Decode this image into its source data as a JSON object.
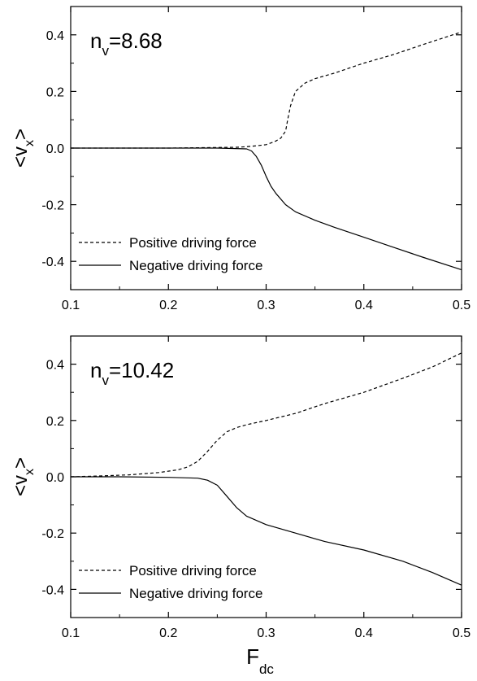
{
  "figure": {
    "x_axis_label_main": "F",
    "x_axis_label_sub": "dc"
  },
  "chart_data": [
    {
      "type": "line",
      "annotation": {
        "main": "n",
        "sub": "v",
        "value": "=8.68"
      },
      "ylabel": {
        "open": "<v",
        "sub": "x",
        "close": ">"
      },
      "xlim": [
        0.1,
        0.5
      ],
      "ylim": [
        -0.5,
        0.5
      ],
      "x_ticks": [
        "0.1",
        "0.2",
        "0.3",
        "0.4",
        "0.5"
      ],
      "y_ticks": [
        "0.4",
        "0.2",
        "0.0",
        "-0.2",
        "-0.4"
      ],
      "x_tick_values": [
        0.1,
        0.2,
        0.3,
        0.4,
        0.5
      ],
      "y_tick_values": [
        0.4,
        0.2,
        0.0,
        -0.2,
        -0.4
      ],
      "legend_position": "bottom-left",
      "series": [
        {
          "name": "Positive driving force",
          "style": "dashed",
          "x": [
            0.1,
            0.15,
            0.2,
            0.25,
            0.27,
            0.28,
            0.29,
            0.3,
            0.305,
            0.31,
            0.315,
            0.32,
            0.322,
            0.325,
            0.328,
            0.33,
            0.335,
            0.34,
            0.35,
            0.37,
            0.4,
            0.43,
            0.46,
            0.5
          ],
          "y": [
            0.0,
            0.0,
            0.0,
            0.002,
            0.003,
            0.005,
            0.008,
            0.012,
            0.018,
            0.025,
            0.035,
            0.06,
            0.1,
            0.15,
            0.18,
            0.2,
            0.215,
            0.23,
            0.245,
            0.265,
            0.3,
            0.33,
            0.365,
            0.41
          ]
        },
        {
          "name": "Negative driving force",
          "style": "solid",
          "x": [
            0.1,
            0.15,
            0.2,
            0.25,
            0.28,
            0.285,
            0.29,
            0.295,
            0.3,
            0.305,
            0.31,
            0.32,
            0.33,
            0.35,
            0.37,
            0.4,
            0.43,
            0.46,
            0.5
          ],
          "y": [
            0.0,
            0.0,
            0.0,
            0.0,
            -0.003,
            -0.01,
            -0.03,
            -0.06,
            -0.1,
            -0.135,
            -0.16,
            -0.2,
            -0.225,
            -0.255,
            -0.28,
            -0.315,
            -0.35,
            -0.385,
            -0.43
          ]
        }
      ]
    },
    {
      "type": "line",
      "annotation": {
        "main": "n",
        "sub": "v",
        "value": "=10.42"
      },
      "ylabel": {
        "open": "<v",
        "sub": "x",
        "close": ">"
      },
      "xlim": [
        0.1,
        0.5
      ],
      "ylim": [
        -0.5,
        0.5
      ],
      "x_ticks": [
        "0.1",
        "0.2",
        "0.3",
        "0.4",
        "0.5"
      ],
      "y_ticks": [
        "0.4",
        "0.2",
        "0.0",
        "-0.2",
        "-0.4"
      ],
      "x_tick_values": [
        0.1,
        0.2,
        0.3,
        0.4,
        0.5
      ],
      "y_tick_values": [
        0.4,
        0.2,
        0.0,
        -0.2,
        -0.4
      ],
      "legend_position": "bottom-left",
      "series": [
        {
          "name": "Positive driving force",
          "style": "dashed",
          "x": [
            0.1,
            0.13,
            0.16,
            0.19,
            0.21,
            0.22,
            0.23,
            0.24,
            0.25,
            0.26,
            0.27,
            0.28,
            0.3,
            0.33,
            0.36,
            0.4,
            0.44,
            0.47,
            0.5
          ],
          "y": [
            0.0,
            0.003,
            0.007,
            0.015,
            0.025,
            0.035,
            0.055,
            0.09,
            0.13,
            0.16,
            0.175,
            0.185,
            0.2,
            0.225,
            0.26,
            0.3,
            0.35,
            0.39,
            0.44
          ]
        },
        {
          "name": "Negative driving force",
          "style": "solid",
          "x": [
            0.1,
            0.15,
            0.2,
            0.23,
            0.24,
            0.25,
            0.26,
            0.27,
            0.28,
            0.3,
            0.33,
            0.36,
            0.4,
            0.44,
            0.47,
            0.5
          ],
          "y": [
            0.0,
            0.0,
            -0.002,
            -0.005,
            -0.012,
            -0.03,
            -0.07,
            -0.11,
            -0.14,
            -0.17,
            -0.2,
            -0.23,
            -0.26,
            -0.3,
            -0.34,
            -0.385
          ]
        }
      ]
    }
  ]
}
